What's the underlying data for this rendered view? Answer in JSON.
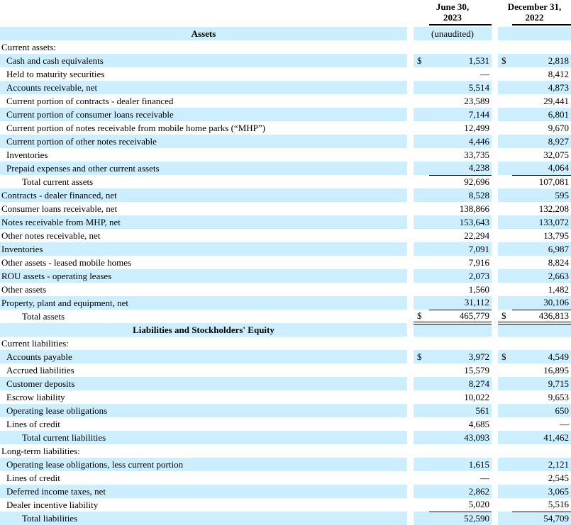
{
  "document": {
    "type": "balance-sheet",
    "colors": {
      "row_highlight": "#cceeff",
      "text": "#000000",
      "rule": "#000000"
    }
  },
  "columns": [
    {
      "line1": "June 30,",
      "line2": "2023",
      "note": "(unaudited)"
    },
    {
      "line1": "December 31,",
      "line2": "2022",
      "note": ""
    }
  ],
  "rows": [
    {
      "type": "title",
      "label": "Assets",
      "shade": true,
      "note1": "(unaudited)",
      "note2": ""
    },
    {
      "type": "item",
      "label": "Current assets:",
      "indent": 0,
      "shade": false,
      "d1": "",
      "v1": "",
      "d2": "",
      "v2": ""
    },
    {
      "type": "item",
      "label": "Cash and cash equivalents",
      "indent": 1,
      "shade": true,
      "d1": "$",
      "v1": "1,531",
      "d2": "$",
      "v2": "2,818"
    },
    {
      "type": "item",
      "label": "Held to maturity securities",
      "indent": 1,
      "shade": false,
      "d1": "",
      "v1": "—",
      "d2": "",
      "v2": "8,412"
    },
    {
      "type": "item",
      "label": "Accounts receivable, net",
      "indent": 1,
      "shade": true,
      "d1": "",
      "v1": "5,514",
      "d2": "",
      "v2": "4,873"
    },
    {
      "type": "item",
      "label": "Current portion of contracts - dealer financed",
      "indent": 1,
      "shade": false,
      "d1": "",
      "v1": "23,589",
      "d2": "",
      "v2": "29,441"
    },
    {
      "type": "item",
      "label": "Current portion of consumer loans receivable",
      "indent": 1,
      "shade": true,
      "d1": "",
      "v1": "7,144",
      "d2": "",
      "v2": "6,801"
    },
    {
      "type": "item",
      "label": "Current portion of notes receivable from mobile home parks (“MHP”)",
      "indent": 1,
      "shade": false,
      "d1": "",
      "v1": "12,499",
      "d2": "",
      "v2": "9,670"
    },
    {
      "type": "item",
      "label": "Current portion of other notes receivable",
      "indent": 1,
      "shade": true,
      "d1": "",
      "v1": "4,446",
      "d2": "",
      "v2": "8,927"
    },
    {
      "type": "item",
      "label": "Inventories",
      "indent": 1,
      "shade": false,
      "d1": "",
      "v1": "33,735",
      "d2": "",
      "v2": "32,075"
    },
    {
      "type": "item",
      "label": "Prepaid expenses and other current assets",
      "indent": 1,
      "shade": true,
      "d1": "",
      "v1": "4,238",
      "d2": "",
      "v2": "4,064",
      "border": "single"
    },
    {
      "type": "item",
      "label": "Total current assets",
      "indent": 2,
      "shade": false,
      "d1": "",
      "v1": "92,696",
      "d2": "",
      "v2": "107,081"
    },
    {
      "type": "item",
      "label": "Contracts - dealer financed, net",
      "indent": 0,
      "shade": true,
      "d1": "",
      "v1": "8,528",
      "d2": "",
      "v2": "595"
    },
    {
      "type": "item",
      "label": "Consumer loans receivable, net",
      "indent": 0,
      "shade": false,
      "d1": "",
      "v1": "138,866",
      "d2": "",
      "v2": "132,208"
    },
    {
      "type": "item",
      "label": "Notes receivable from MHP, net",
      "indent": 0,
      "shade": true,
      "d1": "",
      "v1": "153,643",
      "d2": "",
      "v2": "133,072"
    },
    {
      "type": "item",
      "label": "Other notes receivable, net",
      "indent": 0,
      "shade": false,
      "d1": "",
      "v1": "22,294",
      "d2": "",
      "v2": "13,795"
    },
    {
      "type": "item",
      "label": "Inventories",
      "indent": 0,
      "shade": true,
      "d1": "",
      "v1": "7,091",
      "d2": "",
      "v2": "6,987"
    },
    {
      "type": "item",
      "label": "Other assets - leased mobile homes",
      "indent": 0,
      "shade": false,
      "d1": "",
      "v1": "7,916",
      "d2": "",
      "v2": "8,824"
    },
    {
      "type": "item",
      "label": "ROU assets - operating leases",
      "indent": 0,
      "shade": true,
      "d1": "",
      "v1": "2,073",
      "d2": "",
      "v2": "2,663"
    },
    {
      "type": "item",
      "label": "Other assets",
      "indent": 0,
      "shade": false,
      "d1": "",
      "v1": "1,560",
      "d2": "",
      "v2": "1,482"
    },
    {
      "type": "item",
      "label": "Property, plant and equipment, net",
      "indent": 0,
      "shade": true,
      "d1": "",
      "v1": "31,112",
      "d2": "",
      "v2": "30,106",
      "border": "single"
    },
    {
      "type": "item",
      "label": "Total assets",
      "indent": 2,
      "shade": false,
      "d1": "$",
      "v1": "465,779",
      "d2": "$",
      "v2": "436,813",
      "border": "double"
    },
    {
      "type": "title",
      "label": "Liabilities and Stockholders' Equity",
      "shade": true,
      "note1": "",
      "note2": ""
    },
    {
      "type": "item",
      "label": "Current liabilities:",
      "indent": 0,
      "shade": false,
      "d1": "",
      "v1": "",
      "d2": "",
      "v2": ""
    },
    {
      "type": "item",
      "label": "Accounts payable",
      "indent": 1,
      "shade": true,
      "d1": "$",
      "v1": "3,972",
      "d2": "$",
      "v2": "4,549"
    },
    {
      "type": "item",
      "label": "Accrued liabilities",
      "indent": 1,
      "shade": false,
      "d1": "",
      "v1": "15,579",
      "d2": "",
      "v2": "16,895"
    },
    {
      "type": "item",
      "label": "Customer deposits",
      "indent": 1,
      "shade": true,
      "d1": "",
      "v1": "8,274",
      "d2": "",
      "v2": "9,715"
    },
    {
      "type": "item",
      "label": "Escrow liability",
      "indent": 1,
      "shade": false,
      "d1": "",
      "v1": "10,022",
      "d2": "",
      "v2": "9,653"
    },
    {
      "type": "item",
      "label": "Operating lease obligations",
      "indent": 1,
      "shade": true,
      "d1": "",
      "v1": "561",
      "d2": "",
      "v2": "650"
    },
    {
      "type": "item",
      "label": "Lines of credit",
      "indent": 1,
      "shade": false,
      "d1": "",
      "v1": "4,685",
      "d2": "",
      "v2": "—"
    },
    {
      "type": "item",
      "label": "Total current liabilities",
      "indent": 2,
      "shade": true,
      "d1": "",
      "v1": "43,093",
      "d2": "",
      "v2": "41,462"
    },
    {
      "type": "item",
      "label": "Long-term liabilities:",
      "indent": 0,
      "shade": false,
      "d1": "",
      "v1": "",
      "d2": "",
      "v2": ""
    },
    {
      "type": "item",
      "label": "Operating lease obligations, less current portion",
      "indent": 1,
      "shade": true,
      "d1": "",
      "v1": "1,615",
      "d2": "",
      "v2": "2,121"
    },
    {
      "type": "item",
      "label": "Lines of credit",
      "indent": 1,
      "shade": false,
      "d1": "",
      "v1": "—",
      "d2": "",
      "v2": "2,545"
    },
    {
      "type": "item",
      "label": "Deferred income taxes, net",
      "indent": 1,
      "shade": true,
      "d1": "",
      "v1": "2,862",
      "d2": "",
      "v2": "3,065"
    },
    {
      "type": "item",
      "label": "Dealer incentive liability",
      "indent": 1,
      "shade": false,
      "d1": "",
      "v1": "5,020",
      "d2": "",
      "v2": "5,516",
      "border": "single"
    },
    {
      "type": "item",
      "label": "Total liabilities",
      "indent": 2,
      "shade": true,
      "d1": "",
      "v1": "52,590",
      "d2": "",
      "v2": "54,709"
    }
  ]
}
